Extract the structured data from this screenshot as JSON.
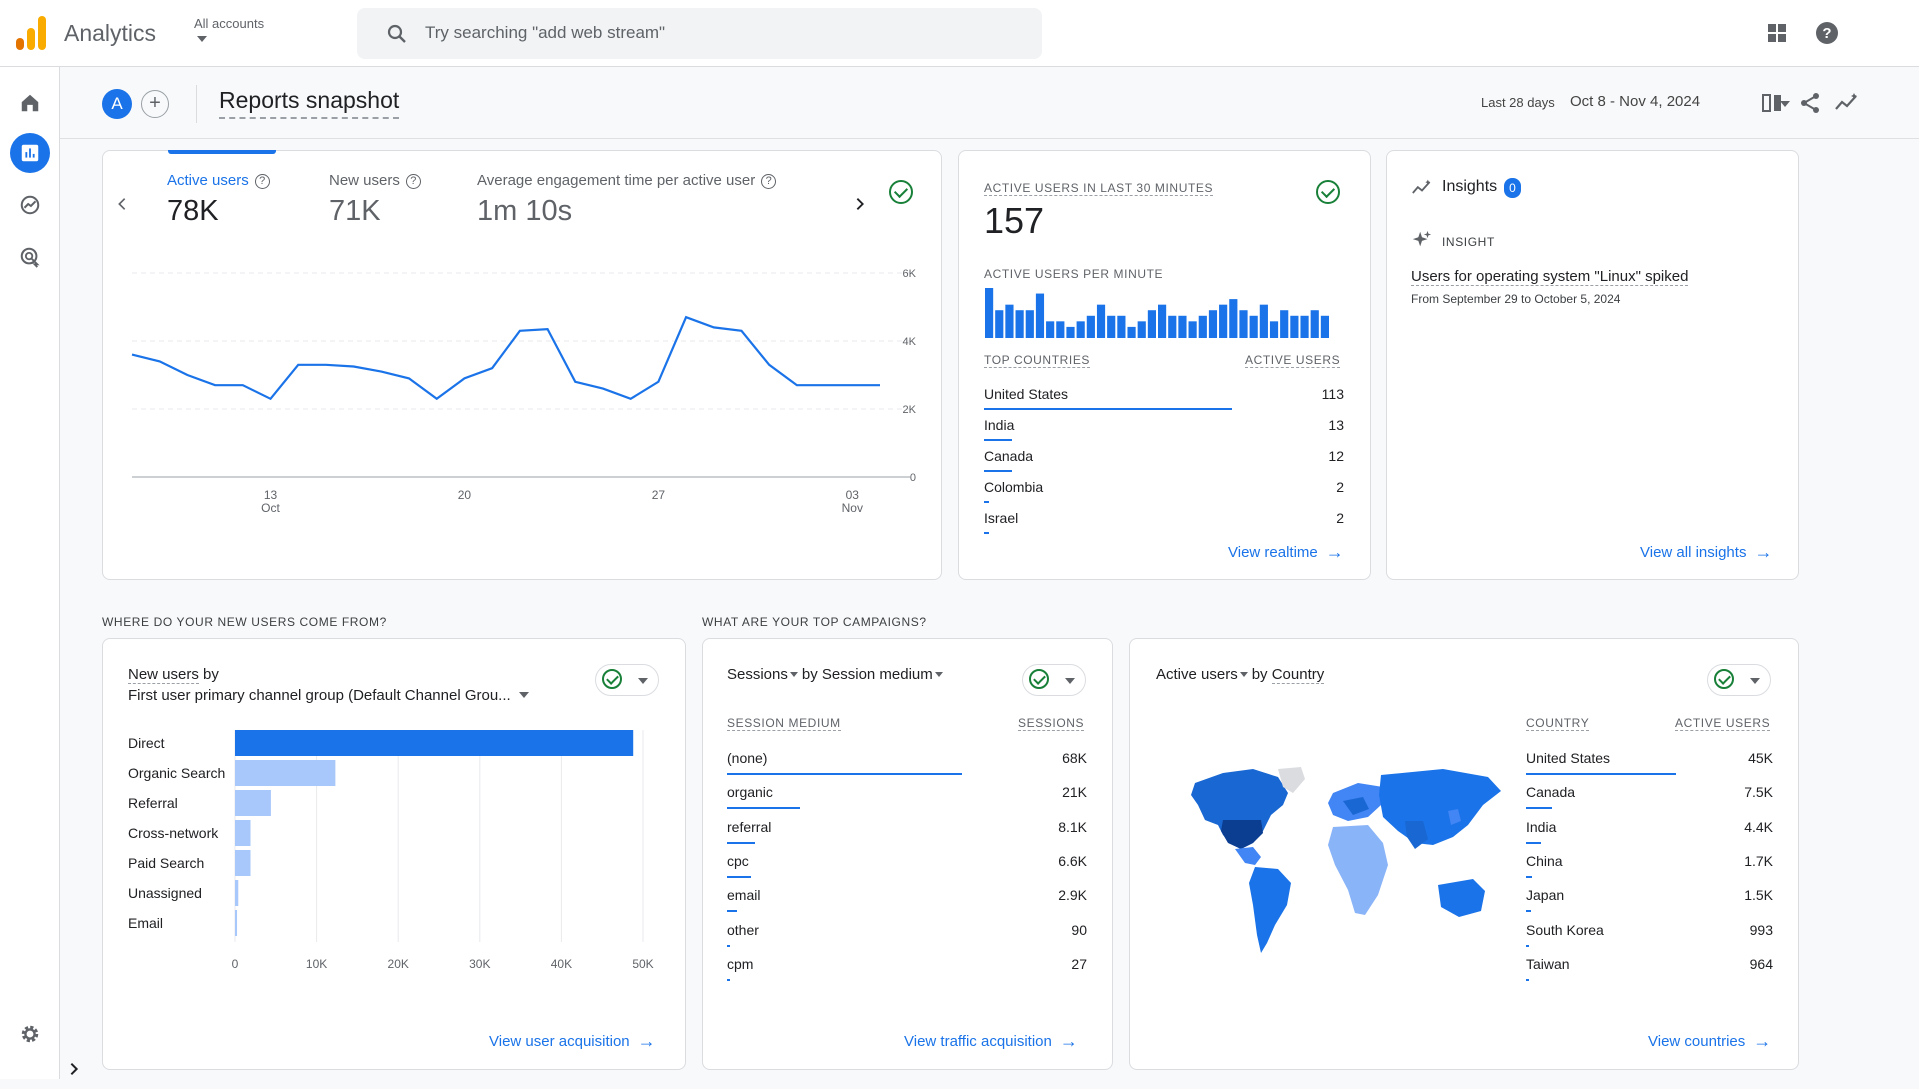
{
  "app": {
    "name": "Analytics",
    "accounts_label": "All accounts"
  },
  "search": {
    "placeholder": "Try searching \"add web stream\""
  },
  "header": {
    "avatar": "A",
    "add": "+",
    "title": "Reports snapshot",
    "range_label": "Last 28 days",
    "range_value": "Oct 8 - Nov 4, 2024"
  },
  "colors": {
    "accent": "#1a73e8",
    "light_bar": "#a8c7fa",
    "success": "#188038",
    "logo_orange": "#f9ab00",
    "logo_dark": "#e37400"
  },
  "overview": {
    "metrics": [
      {
        "label": "Active users",
        "value": "78K"
      },
      {
        "label": "New users",
        "value": "71K"
      },
      {
        "label": "Average engagement time per active user",
        "value": "1m 10s"
      }
    ],
    "help": "?",
    "chart_data": {
      "type": "line",
      "title": "Active users",
      "xlabel": "",
      "ylabel": "",
      "ylim": [
        0,
        6000
      ],
      "y_ticks": [
        "6K",
        "4K",
        "2K",
        "0"
      ],
      "x_ticks": [
        {
          "day": "13",
          "month": "Oct"
        },
        {
          "day": "20",
          "month": ""
        },
        {
          "day": "27",
          "month": ""
        },
        {
          "day": "03",
          "month": "Nov"
        }
      ],
      "values": [
        3600,
        3400,
        3000,
        2700,
        2700,
        2300,
        3300,
        3300,
        3250,
        3100,
        2900,
        2300,
        2900,
        3200,
        4300,
        4350,
        2800,
        2600,
        2300,
        2800,
        4700,
        4400,
        4300,
        3300,
        2700,
        2700,
        2700,
        2700
      ]
    }
  },
  "realtime": {
    "title": "ACTIVE USERS IN LAST 30 MINUTES",
    "value": "157",
    "per_minute_label": "ACTIVE USERS PER MINUTE",
    "per_minute": [
      9,
      5,
      6,
      5,
      5,
      8,
      3,
      3,
      2,
      3,
      4,
      6,
      4,
      4,
      2,
      3,
      5,
      6,
      4,
      4,
      3,
      4,
      5,
      6,
      7,
      5,
      4,
      6,
      3,
      5,
      4,
      4,
      5,
      4
    ],
    "col_country": "TOP COUNTRIES",
    "col_users": "ACTIVE USERS",
    "rows": [
      {
        "country": "United States",
        "value": "113",
        "share": 0.72
      },
      {
        "country": "India",
        "value": "13",
        "share": 0.08
      },
      {
        "country": "Canada",
        "value": "12",
        "share": 0.08
      },
      {
        "country": "Colombia",
        "value": "2",
        "share": 0.015
      },
      {
        "country": "Israel",
        "value": "2",
        "share": 0.015
      }
    ],
    "link": "View realtime"
  },
  "insights": {
    "title": "Insights",
    "count": "0",
    "tag": "INSIGHT",
    "headline": "Users for operating system \"Linux\" spiked",
    "sub": "From September 29 to October 5, 2024",
    "link": "View all insights"
  },
  "sections": {
    "acquisition": "WHERE DO YOUR NEW USERS COME FROM?",
    "campaigns": "WHAT ARE YOUR TOP CAMPAIGNS?"
  },
  "acquisition": {
    "title1": "New users",
    "by": " by",
    "title2": "First user primary channel group (Default Channel Grou...",
    "chart_data": {
      "type": "bar",
      "orientation": "horizontal",
      "categories": [
        "Direct",
        "Organic Search",
        "Referral",
        "Cross-network",
        "Paid Search",
        "Unassigned",
        "Email"
      ],
      "values": [
        48800,
        12300,
        4400,
        1900,
        1900,
        400,
        250
      ],
      "xlim": [
        0,
        50000
      ],
      "x_ticks": [
        "0",
        "10K",
        "20K",
        "30K",
        "40K",
        "50K"
      ],
      "highlight": 0
    },
    "link": "View user acquisition"
  },
  "campaigns": {
    "metric": "Sessions",
    "dim_prefix": "by",
    "dim": "Session medium",
    "col1": "SESSION MEDIUM",
    "col2": "SESSIONS",
    "rows": [
      {
        "name": "(none)",
        "value": "68K",
        "share": 1.0
      },
      {
        "name": "organic",
        "value": "21K",
        "share": 0.31
      },
      {
        "name": "referral",
        "value": "8.1K",
        "share": 0.12
      },
      {
        "name": "cpc",
        "value": "6.6K",
        "share": 0.1
      },
      {
        "name": "email",
        "value": "2.9K",
        "share": 0.043
      },
      {
        "name": "other",
        "value": "90",
        "share": 0.01
      },
      {
        "name": "cpm",
        "value": "27",
        "share": 0.005
      }
    ],
    "link": "View traffic acquisition"
  },
  "countries": {
    "metric": "Active users",
    "by": "by",
    "dim": "Country",
    "col1": "COUNTRY",
    "col2": "ACTIVE USERS",
    "rows": [
      {
        "name": "United States",
        "value": "45K",
        "share": 1.0
      },
      {
        "name": "Canada",
        "value": "7.5K",
        "share": 0.17
      },
      {
        "name": "India",
        "value": "4.4K",
        "share": 0.1
      },
      {
        "name": "China",
        "value": "1.7K",
        "share": 0.04
      },
      {
        "name": "Japan",
        "value": "1.5K",
        "share": 0.035
      },
      {
        "name": "South Korea",
        "value": "993",
        "share": 0.022
      },
      {
        "name": "Taiwan",
        "value": "964",
        "share": 0.021
      }
    ],
    "link": "View countries"
  }
}
